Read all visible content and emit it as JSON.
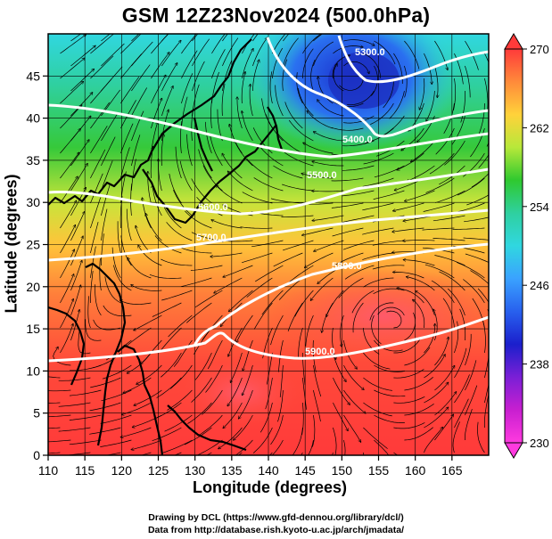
{
  "title": "GSM 12Z23Nov2024 (500.0hPa)",
  "axes": {
    "x_label": "Longitude (degrees)",
    "y_label": "Latitude  (degrees)",
    "x_ticks": [
      "110",
      "115",
      "120",
      "125",
      "130",
      "135",
      "140",
      "145",
      "150",
      "155",
      "160",
      "165"
    ],
    "y_ticks": [
      "0",
      "5",
      "10",
      "15",
      "20",
      "25",
      "30",
      "35",
      "40",
      "45"
    ]
  },
  "colorbar": {
    "labels": [
      "270",
      "262",
      "254",
      "246",
      "238",
      "230"
    ],
    "stops": [
      "#ff3a3a",
      "#ff8a3a",
      "#ffd23a",
      "#b7e83a",
      "#2fc92f",
      "#2fd0a0",
      "#30d7e0",
      "#3aa2ff",
      "#2860ee",
      "#1b1fcc",
      "#7a1fd6",
      "#c81fd0",
      "#ff3adf"
    ]
  },
  "contours": [
    "5900.0",
    "5800.0",
    "5700.0",
    "5600.0",
    "5500.0",
    "5400.0",
    "5300.0"
  ],
  "credits": {
    "line1": "Drawing by DCL (https://www.gfd-dennou.org/library/dcl/)",
    "line2": "Data from http://database.rish.kyoto-u.ac.jp/arch/jmadata/"
  }
}
